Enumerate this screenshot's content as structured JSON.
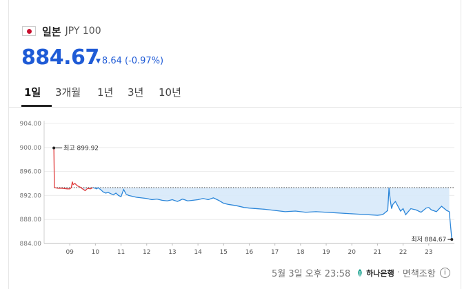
{
  "header": {
    "country": "일본",
    "currency": "JPY 100"
  },
  "quote": {
    "price": "884.67",
    "change_arrow": "▼",
    "change": "8.64 (-0.97%)"
  },
  "tabs": [
    {
      "label": "1일",
      "active": true
    },
    {
      "label": "3개월",
      "active": false
    },
    {
      "label": "1년",
      "active": false
    },
    {
      "label": "3년",
      "active": false
    },
    {
      "label": "10년",
      "active": false
    }
  ],
  "chart_data": {
    "type": "line",
    "y_ticks": [
      "904.00",
      "900.00",
      "896.00",
      "892.00",
      "888.00",
      "884.00"
    ],
    "x_ticks": [
      "09",
      "10",
      "11",
      "12",
      "13",
      "14",
      "15",
      "16",
      "17",
      "18",
      "19",
      "20",
      "21",
      "22",
      "23"
    ],
    "ylim": [
      884,
      904
    ],
    "reference_line": 893.31,
    "high_label": "최고 899.92",
    "low_label": "최저 884.67",
    "high": 899.92,
    "low": 884.67,
    "colors": {
      "up": "#e03c3c",
      "down": "#2b86d9",
      "fill": "#d7e9f9",
      "price": "#1f5bd6"
    },
    "series": [
      {
        "x": [
          8.38,
          8.4,
          8.55,
          8.7,
          8.9,
          9.0,
          9.06,
          9.1,
          9.13,
          9.2,
          9.3,
          9.4,
          9.5,
          9.6,
          9.7,
          9.8,
          9.9,
          10.0,
          10.05,
          10.1,
          10.2,
          10.3,
          10.4,
          10.5,
          10.6,
          10.7,
          10.8,
          10.9,
          11.0,
          11.1,
          11.2,
          11.3,
          11.4,
          11.5,
          11.6,
          11.8,
          12.0,
          12.2,
          12.4,
          12.6,
          12.8,
          13.0,
          13.2,
          13.4,
          13.6,
          13.8,
          14.0,
          14.2,
          14.4,
          14.6,
          14.8,
          15.0,
          15.2,
          15.5,
          15.8,
          16.0,
          16.3,
          16.6,
          17.0,
          17.4,
          17.8,
          18.2,
          18.6,
          19.0,
          19.4,
          19.8,
          20.2,
          20.6,
          21.0,
          21.2,
          21.4,
          21.45,
          21.5,
          21.55,
          21.6,
          21.7,
          21.8,
          21.9,
          22.0,
          22.1,
          22.3,
          22.5,
          22.7,
          22.9,
          23.0,
          23.1,
          23.3,
          23.5,
          23.7,
          23.8,
          23.9
        ],
        "y": [
          899.92,
          893.3,
          893.2,
          893.2,
          893.1,
          893.1,
          893.3,
          894.3,
          893.8,
          894.0,
          893.6,
          893.4,
          893.1,
          892.8,
          893.2,
          893.1,
          893.3,
          893.2,
          893.1,
          893.3,
          893.0,
          892.6,
          892.4,
          892.5,
          892.3,
          892.1,
          892.4,
          892.0,
          891.8,
          893.0,
          892.2,
          892.0,
          891.9,
          891.8,
          891.7,
          891.6,
          891.5,
          891.3,
          891.4,
          891.2,
          891.1,
          891.3,
          891.0,
          891.4,
          891.1,
          891.2,
          891.3,
          891.5,
          891.3,
          891.6,
          891.2,
          890.7,
          890.5,
          890.3,
          890.0,
          889.9,
          889.8,
          889.7,
          889.5,
          889.3,
          889.4,
          889.2,
          889.3,
          889.2,
          889.1,
          889.0,
          888.9,
          888.8,
          888.7,
          888.8,
          889.5,
          893.3,
          891.2,
          889.8,
          890.5,
          891.0,
          890.2,
          889.4,
          889.8,
          888.8,
          889.8,
          889.6,
          889.2,
          889.9,
          890.0,
          889.6,
          889.3,
          890.2,
          889.5,
          889.3,
          884.67
        ]
      }
    ]
  },
  "footer": {
    "timestamp": "5월 3일 오후 23:58",
    "bank": "하나은행",
    "separator": "·",
    "disclaimer": "면책조항",
    "info_glyph": "i"
  }
}
